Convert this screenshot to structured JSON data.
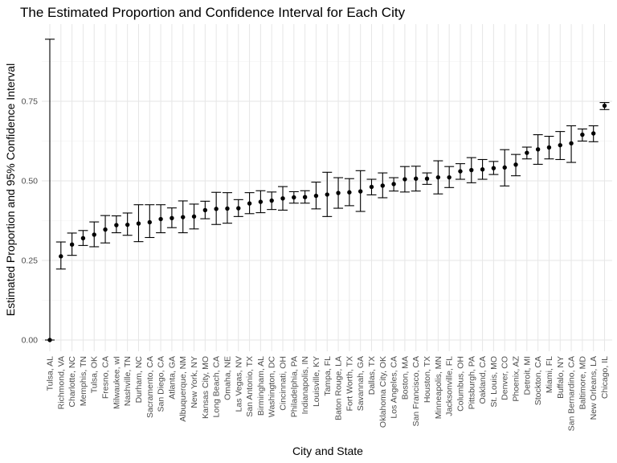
{
  "chart_data": {
    "type": "scatter",
    "title": "The Estimated Proportion and Confidence Interval for Each City",
    "xlabel": "City and State",
    "ylabel": "Estimated Proportion and 95% Confidence Interval",
    "y_ticks": [
      "0.00",
      "0.25",
      "0.50",
      "0.75"
    ],
    "ylim": [
      -0.04,
      0.96
    ],
    "grid": true,
    "error_bars": true,
    "categories": [
      "Tulsa, AL",
      "Richmond, VA",
      "Charlotte, NC",
      "Memphis, TN",
      "Tulsa, OK",
      "Fresno, CA",
      "Milwaukee, wI",
      "Nashville, TN",
      "Durham, NC",
      "Sacramento, CA",
      "San Diego, CA",
      "Atlanta, GA",
      "Albuquerque, NM",
      "New York, NY",
      "Kansas City, MO",
      "Long Beach, CA",
      "Omaha, NE",
      "Las Vegas, NV",
      "San Antonio, TX",
      "Birmingham, AL",
      "Washington, DC",
      "Cincinnati, OH",
      "Philadelphia, PA",
      "Indianapolis, IN",
      "Louisville, KY",
      "Tampa, FL",
      "Baton Rouge, LA",
      "Fort Worth, TX",
      "Savannah, GA",
      "Dallas, TX",
      "Oklahoma City, OK",
      "Los Angeles, CA",
      "Boston, MA",
      "San Francisco, CA",
      "Houston, TX",
      "Minneapolis, MN",
      "Jacksonville, FL",
      "Columbus, OH",
      "Pittsburgh, PA",
      "Oakland, CA",
      "St. Louis, MO",
      "Denver, CO",
      "Phoenix, AZ",
      "Detroit, MI",
      "Stockton, CA",
      "Miami, FL",
      "Buffalo, NY",
      "San Bernardino, CA",
      "Baltimore, MD",
      "New Orleans, LA",
      "Chicago, IL"
    ],
    "estimate": [
      0.0,
      0.263,
      0.3,
      0.32,
      0.331,
      0.347,
      0.361,
      0.362,
      0.366,
      0.37,
      0.38,
      0.383,
      0.386,
      0.388,
      0.408,
      0.412,
      0.413,
      0.414,
      0.429,
      0.434,
      0.438,
      0.445,
      0.448,
      0.449,
      0.453,
      0.457,
      0.462,
      0.464,
      0.467,
      0.481,
      0.485,
      0.49,
      0.505,
      0.507,
      0.507,
      0.511,
      0.511,
      0.53,
      0.534,
      0.536,
      0.54,
      0.542,
      0.551,
      0.588,
      0.599,
      0.605,
      0.612,
      0.618,
      0.645,
      0.649,
      0.736
    ],
    "lower": [
      0.0,
      0.223,
      0.266,
      0.297,
      0.293,
      0.305,
      0.337,
      0.329,
      0.309,
      0.322,
      0.337,
      0.353,
      0.337,
      0.349,
      0.381,
      0.363,
      0.367,
      0.388,
      0.397,
      0.4,
      0.41,
      0.408,
      0.43,
      0.43,
      0.412,
      0.388,
      0.414,
      0.422,
      0.404,
      0.456,
      0.447,
      0.468,
      0.465,
      0.468,
      0.489,
      0.459,
      0.479,
      0.505,
      0.494,
      0.505,
      0.52,
      0.484,
      0.516,
      0.569,
      0.552,
      0.569,
      0.567,
      0.558,
      0.625,
      0.623,
      0.724
    ],
    "upper": [
      0.945,
      0.308,
      0.336,
      0.344,
      0.371,
      0.391,
      0.39,
      0.399,
      0.425,
      0.425,
      0.425,
      0.415,
      0.437,
      0.427,
      0.436,
      0.464,
      0.463,
      0.441,
      0.463,
      0.469,
      0.465,
      0.482,
      0.466,
      0.469,
      0.496,
      0.527,
      0.51,
      0.507,
      0.532,
      0.505,
      0.525,
      0.51,
      0.545,
      0.546,
      0.525,
      0.563,
      0.545,
      0.554,
      0.573,
      0.567,
      0.561,
      0.598,
      0.583,
      0.606,
      0.645,
      0.64,
      0.655,
      0.673,
      0.663,
      0.673,
      0.746
    ]
  }
}
